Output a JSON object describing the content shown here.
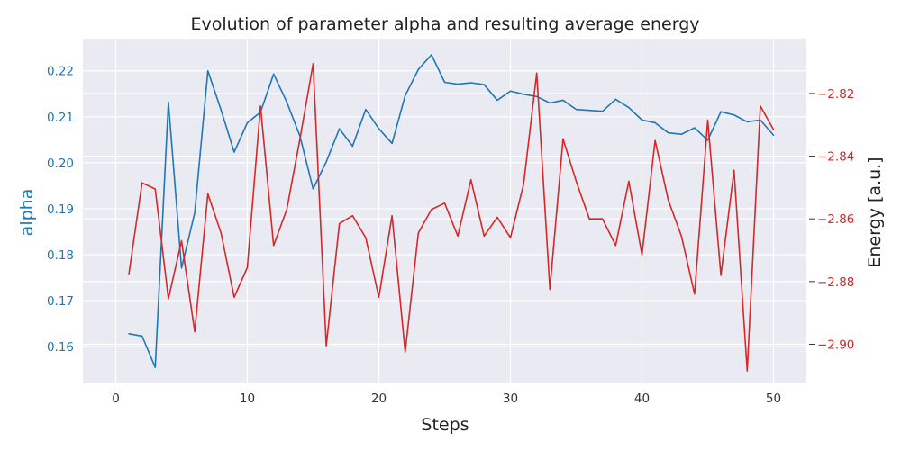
{
  "chart_data": {
    "type": "line",
    "title": "Evolution of parameter alpha and resulting average energy",
    "xlabel": "Steps",
    "ylabel_left": "alpha",
    "ylabel_right": "Energy [a.u.]",
    "xlim": [
      -2.5,
      52.5
    ],
    "ylim_left": [
      0.152,
      0.227
    ],
    "ylim_right": [
      -2.9125,
      -2.8025
    ],
    "x_ticks": [
      0,
      10,
      20,
      30,
      40,
      50
    ],
    "y_ticks_left": [
      0.16,
      0.17,
      0.18,
      0.19,
      0.2,
      0.21,
      0.22
    ],
    "y_ticks_left_labels": [
      "0.16",
      "0.17",
      "0.18",
      "0.19",
      "0.20",
      "0.21",
      "0.22"
    ],
    "y_ticks_right": [
      -2.9,
      -2.88,
      -2.86,
      -2.84,
      -2.82
    ],
    "y_ticks_right_labels": [
      "−2.90",
      "−2.88",
      "−2.86",
      "−2.84",
      "−2.82"
    ],
    "grid": true,
    "x": [
      1,
      2,
      3,
      4,
      5,
      6,
      7,
      8,
      9,
      10,
      11,
      12,
      13,
      14,
      15,
      16,
      17,
      18,
      19,
      20,
      21,
      22,
      23,
      24,
      25,
      26,
      27,
      28,
      29,
      30,
      31,
      32,
      33,
      34,
      35,
      36,
      37,
      38,
      39,
      40,
      41,
      42,
      43,
      44,
      45,
      46,
      47,
      48,
      49,
      50
    ],
    "series": [
      {
        "axis": "left",
        "color": "#1f77b4",
        "values": [
          0.1628,
          0.1623,
          0.1555,
          0.2132,
          0.1771,
          0.1891,
          0.22,
          0.2115,
          0.2023,
          0.2087,
          0.211,
          0.2193,
          0.2132,
          0.2058,
          0.1943,
          0.2002,
          0.2074,
          0.2036,
          0.2116,
          0.2074,
          0.2042,
          0.2146,
          0.2203,
          0.2235,
          0.2175,
          0.2171,
          0.2174,
          0.217,
          0.2136,
          0.2156,
          0.2149,
          0.2144,
          0.213,
          0.2136,
          0.2116,
          0.2114,
          0.2112,
          0.2138,
          0.212,
          0.2093,
          0.2087,
          0.2065,
          0.2062,
          0.2076,
          0.2049,
          0.2111,
          0.2104,
          0.2089,
          0.2093,
          0.206
        ]
      },
      {
        "axis": "right",
        "color": "#d62728",
        "values": [
          -2.8775,
          -2.8485,
          -2.8505,
          -2.8855,
          -2.867,
          -2.896,
          -2.852,
          -2.8645,
          -2.885,
          -2.8755,
          -2.824,
          -2.8685,
          -2.857,
          -2.8345,
          -2.8105,
          -2.9005,
          -2.8615,
          -2.859,
          -2.866,
          -2.885,
          -2.859,
          -2.9025,
          -2.8645,
          -2.857,
          -2.855,
          -2.8655,
          -2.8475,
          -2.8655,
          -2.8595,
          -2.866,
          -2.849,
          -2.8135,
          -2.8825,
          -2.8345,
          -2.848,
          -2.86,
          -2.86,
          -2.8685,
          -2.848,
          -2.8715,
          -2.835,
          -2.854,
          -2.8655,
          -2.884,
          -2.8285,
          -2.878,
          -2.8445,
          -2.9085,
          -2.824,
          -2.8315
        ]
      }
    ],
    "colors": {
      "left_axis": "#1f77b4",
      "right_axis": "#d62728",
      "plot_background": "#eaeaf2",
      "grid": "#ffffff"
    }
  }
}
